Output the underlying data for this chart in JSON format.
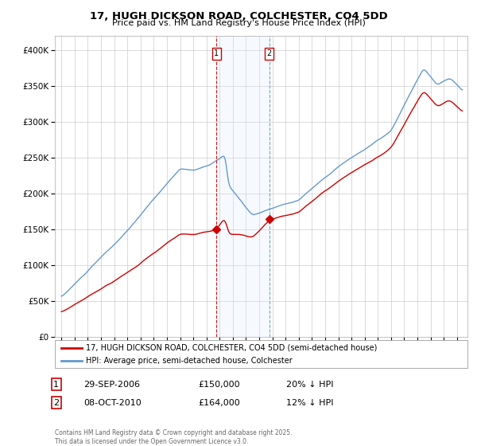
{
  "title": "17, HUGH DICKSON ROAD, COLCHESTER, CO4 5DD",
  "subtitle": "Price paid vs. HM Land Registry's House Price Index (HPI)",
  "footnote": "Contains HM Land Registry data © Crown copyright and database right 2025.\nThis data is licensed under the Open Government Licence v3.0.",
  "legend_line1": "17, HUGH DICKSON ROAD, COLCHESTER, CO4 5DD (semi-detached house)",
  "legend_line2": "HPI: Average price, semi-detached house, Colchester",
  "sale1_label": "1",
  "sale1_date": "29-SEP-2006",
  "sale1_price": "£150,000",
  "sale1_hpi": "20% ↓ HPI",
  "sale2_label": "2",
  "sale2_date": "08-OCT-2010",
  "sale2_price": "£164,000",
  "sale2_hpi": "12% ↓ HPI",
  "red_color": "#cc0000",
  "blue_color": "#6699cc",
  "shade_color": "#ddeeff",
  "vline1_x": 2006.75,
  "vline2_x": 2010.77,
  "sale1_year": 2006.75,
  "sale1_price_val": 150000,
  "sale2_year": 2010.77,
  "sale2_price_val": 164000,
  "ylim": [
    0,
    420000
  ],
  "xlim_start": 1994.5,
  "xlim_end": 2025.8,
  "yticks": [
    0,
    50000,
    100000,
    150000,
    200000,
    250000,
    300000,
    350000,
    400000
  ],
  "background_color": "#ffffff",
  "grid_color": "#cccccc"
}
